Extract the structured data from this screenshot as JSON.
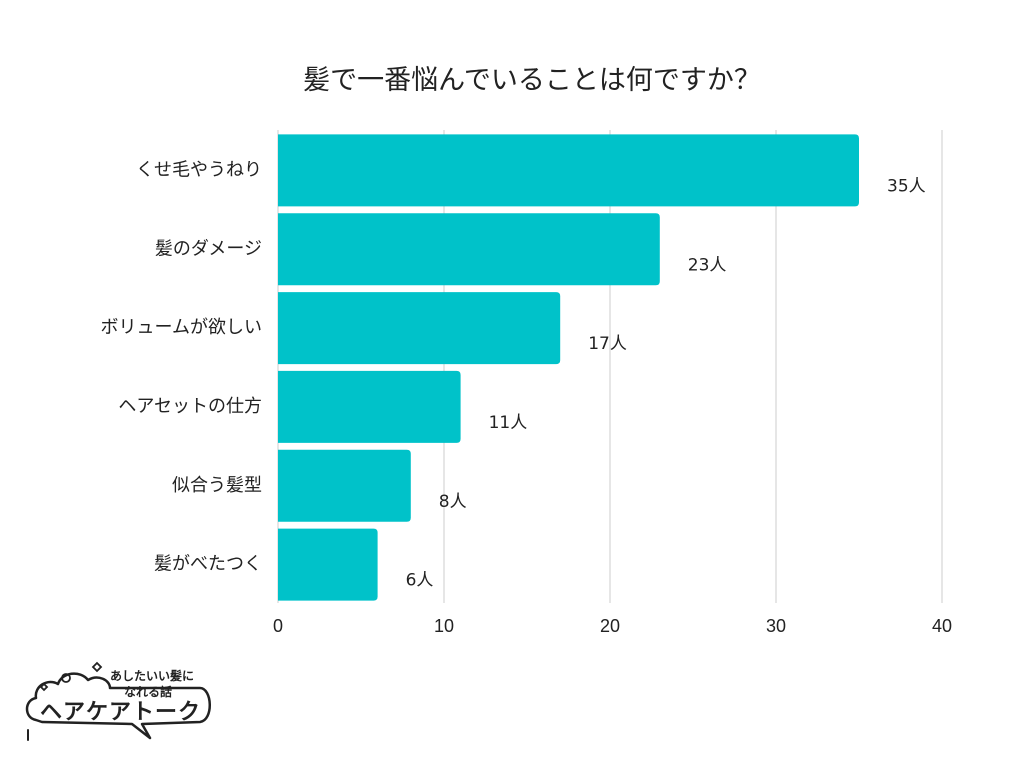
{
  "title": "髪で一番悩んでいることは何ですか？",
  "logo": {
    "tagline_line1": "あしたいい髪に",
    "tagline_line2": "なれる話",
    "brand": "ヘアケアトーク"
  },
  "colors": {
    "bar": "#00c2c9",
    "grid": "#cccccc",
    "text": "#222222"
  },
  "chart_data": {
    "type": "bar",
    "orientation": "horizontal",
    "title": "髪で一番悩んでいることは何ですか？",
    "categories": [
      "くせ毛やうねり",
      "髪のダメージ",
      "ボリュームが欲しい",
      "ヘアセットの仕方",
      "似合う髪型",
      "髪がべたつく"
    ],
    "values": [
      35,
      23,
      17,
      11,
      8,
      6
    ],
    "value_labels": [
      "35人",
      "23人",
      "17人",
      "11人",
      "8人",
      "6人"
    ],
    "x_ticks": [
      "0",
      "10",
      "20",
      "30",
      "40"
    ],
    "xlim": [
      0,
      40
    ],
    "grid": true,
    "xlabel": "",
    "ylabel": ""
  }
}
